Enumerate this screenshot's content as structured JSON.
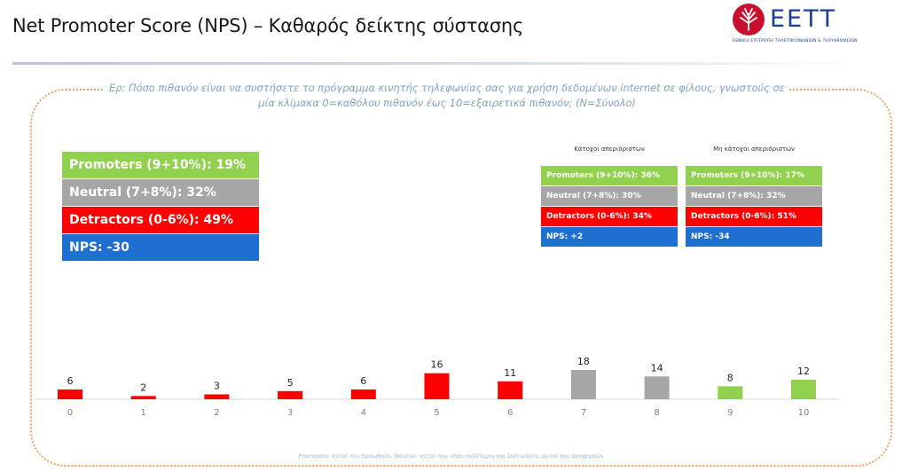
{
  "title": "Net Promoter Score (NPS) – Καθαρός δείκτης σύστασης",
  "logo": {
    "text": "ΕΕΤΤ",
    "subtitle": "ΕΘΝΙΚΗ ΕΠΙΤΡΟΠΗ ΤΗΛΕΠΙΚΟΙΝΩΝΙΩΝ & ΤΑΧΥΔΡΟΜΕΙΩΝ"
  },
  "question": "Ερ: Πόσο πιθανόν είναι να συστήσετε το πρόγραμμα κινητής τηλεφωνίας σας για χρήση δεδομένων internet σε φίλους, γνωστούς σε μία κλίμακα 0=καθόλου πιθανόν έως 10=εξαιρετικά πιθανόν; (N=Σύνολο)",
  "summary": {
    "promoters": "Promoters (9+10%): 19%",
    "neutral": "Neutral (7+8%): 32%",
    "detractors": "Detractors (0-6%): 49%",
    "nps": "NPS: -30"
  },
  "unlimited_owners": {
    "heading": "Κάτοχοι απεριόριστων",
    "promoters": "Promoters (9+10%): 36%",
    "neutral": "Neutral (7+8%): 30%",
    "detractors": "Detractors (0-6%): 34%",
    "nps": "NPS: +2"
  },
  "non_unlimited_owners": {
    "heading": "Μη κάτοχοι απεριόριστων",
    "promoters": "Promoters (9+10%): 17%",
    "neutral": "Neutral (7+8%): 32%",
    "detractors": "Detractors (0-6%): 51%",
    "nps": "NPS: -34"
  },
  "colors": {
    "promoter": "#92d050",
    "neutral": "#a6a6a6",
    "detractor": "#ff0000",
    "nps": "#1f6fd1",
    "accent_orange": "#f2a064",
    "question_text": "#7ea3c8"
  },
  "chart_data": {
    "type": "bar",
    "title": "",
    "xlabel": "",
    "ylabel": "",
    "categories": [
      "0",
      "1",
      "2",
      "3",
      "4",
      "5",
      "6",
      "7",
      "8",
      "9",
      "10"
    ],
    "values": [
      6,
      2,
      3,
      5,
      6,
      16,
      11,
      18,
      14,
      8,
      12
    ],
    "groups": [
      "detractor",
      "detractor",
      "detractor",
      "detractor",
      "detractor",
      "detractor",
      "detractor",
      "neutral",
      "neutral",
      "promoter",
      "promoter"
    ],
    "data_labels": true,
    "ylim": [
      0,
      18
    ],
    "grid": false,
    "legend": "none"
  },
  "footnote": "Promoters: αυτοί που προωθούν, Neutral: αυτοί που είναι ουδέτεροι και Detractors: αυτοί που δυσφημούν"
}
